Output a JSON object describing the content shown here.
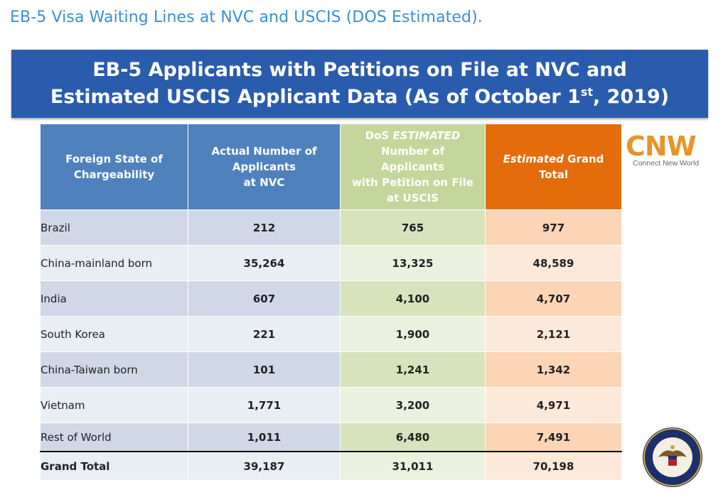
{
  "page_heading": "EB-5 Visa Waiting Lines at NVC and USCIS (DOS Estimated).",
  "banner": {
    "line1": "EB-5 Applicants with Petitions on File at NVC and",
    "line2_pre": "Estimated USCIS Applicant Data (As of October 1",
    "line2_sup": "st",
    "line2_post": ", 2019)"
  },
  "table": {
    "headers": {
      "col0_line1": "Foreign State of",
      "col0_line2": "Chargeability",
      "col1_line1": "Actual Number of",
      "col1_line2": "Applicants",
      "col1_line3": "at NVC",
      "col2_pre": "DoS ",
      "col2_em": "ESTIMATED",
      "col2_line2": "Number of Applicants",
      "col2_line3": "with Petition on File",
      "col2_line4": "at USCIS",
      "col3_em": "Estimated",
      "col3_post": " Grand",
      "col3_line2": "Total"
    },
    "rows": [
      {
        "country": "Brazil",
        "nvc": "212",
        "uscis": "765",
        "total": "977"
      },
      {
        "country": "China-mainland born",
        "nvc": "35,264",
        "uscis": "13,325",
        "total": "48,589"
      },
      {
        "country": "India",
        "nvc": "607",
        "uscis": "4,100",
        "total": "4,707"
      },
      {
        "country": "South Korea",
        "nvc": "221",
        "uscis": "1,900",
        "total": "2,121"
      },
      {
        "country": "China-Taiwan born",
        "nvc": "101",
        "uscis": "1,241",
        "total": "1,342"
      },
      {
        "country": "Vietnam",
        "nvc": "1,771",
        "uscis": "3,200",
        "total": "4,971"
      },
      {
        "country": "Rest of World",
        "nvc": "1,011",
        "uscis": "6,480",
        "total": "7,491"
      }
    ],
    "grand_total": {
      "label": "Grand Total",
      "nvc": "39,187",
      "uscis": "31,011",
      "total": "70,198"
    }
  },
  "logo": {
    "mark": "CNW",
    "tagline": "Connect New World",
    "brand_color": "#e8942a"
  },
  "seal": {
    "icon": "dos-seal-icon",
    "text": "DEPARTMENT OF STATE · UNITED STATES OF AMERICA"
  },
  "colors": {
    "heading": "#3b8fd0",
    "banner": "#2a5cad",
    "col_blue": "#4f81bd",
    "col_green": "#c3d69b",
    "col_orange": "#e46c0a"
  }
}
